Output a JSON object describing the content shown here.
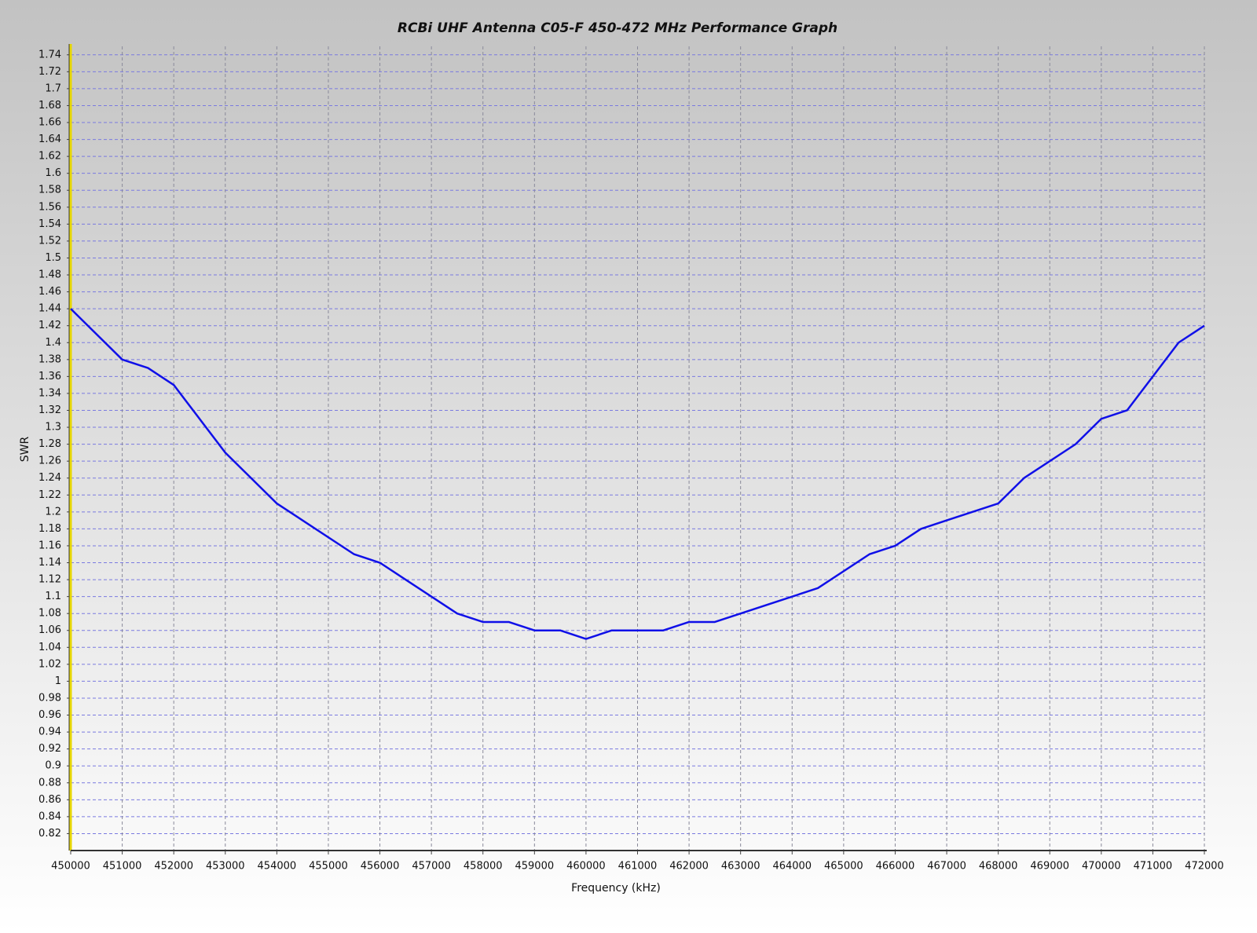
{
  "chart_data": {
    "type": "line",
    "title": "RCBi UHF Antenna C05-F 450-472 MHz Performance Graph",
    "x_label": "Frequency (kHz)",
    "y_label": "SWR",
    "grid": true,
    "xlim": [
      450000,
      472000
    ],
    "xticks": [
      450000,
      451000,
      452000,
      453000,
      454000,
      455000,
      456000,
      457000,
      458000,
      459000,
      460000,
      461000,
      462000,
      463000,
      464000,
      465000,
      466000,
      467000,
      468000,
      469000,
      470000,
      471000,
      472000
    ],
    "ylim": [
      0.8,
      1.75
    ],
    "yticks": [
      0.82,
      0.84,
      0.86,
      0.88,
      0.9,
      0.92,
      0.94,
      0.96,
      0.98,
      1,
      1.02,
      1.04,
      1.06,
      1.08,
      1.1,
      1.12,
      1.14,
      1.16,
      1.18,
      1.2,
      1.22,
      1.24,
      1.26,
      1.28,
      1.3,
      1.32,
      1.34,
      1.36,
      1.38,
      1.4,
      1.42,
      1.44,
      1.46,
      1.48,
      1.5,
      1.52,
      1.54,
      1.56,
      1.58,
      1.6,
      1.62,
      1.64,
      1.66,
      1.68,
      1.7,
      1.72,
      1.74
    ],
    "x": [
      450000,
      451000,
      451500,
      452000,
      453000,
      454000,
      455500,
      456000,
      457500,
      458000,
      458500,
      459000,
      459500,
      460000,
      460500,
      461000,
      461500,
      462000,
      462500,
      463000,
      464000,
      464500,
      465500,
      466000,
      466500,
      467000,
      468000,
      468500,
      469500,
      470000,
      470500,
      471500,
      472000
    ],
    "series": [
      {
        "color": "#1010e8",
        "values": [
          1.44,
          1.38,
          1.37,
          1.35,
          1.27,
          1.21,
          1.15,
          1.14,
          1.08,
          1.07,
          1.07,
          1.06,
          1.06,
          1.05,
          1.06,
          1.06,
          1.06,
          1.07,
          1.07,
          1.08,
          1.1,
          1.11,
          1.15,
          1.16,
          1.18,
          1.19,
          1.21,
          1.24,
          1.28,
          1.31,
          1.32,
          1.4,
          1.42
        ]
      }
    ]
  }
}
